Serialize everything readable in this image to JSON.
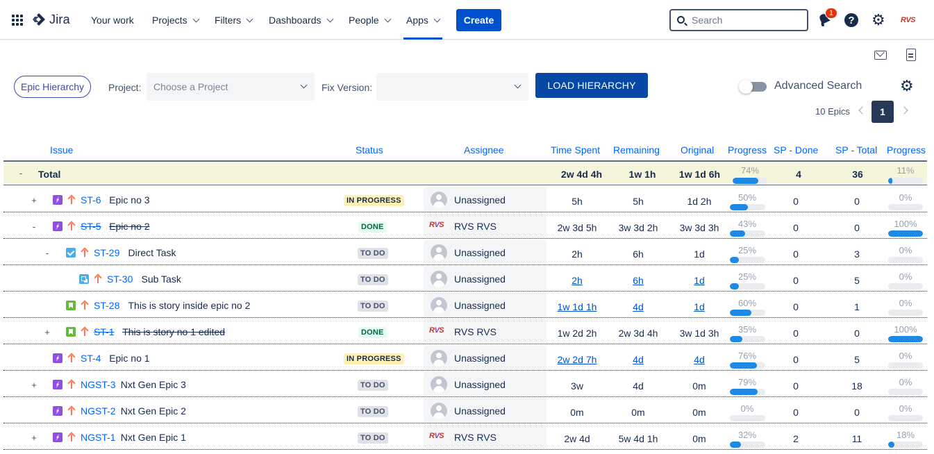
{
  "nav": {
    "product": "Jira",
    "items": [
      "Your work",
      "Projects",
      "Filters",
      "Dashboards",
      "People",
      "Apps"
    ],
    "create_label": "Create",
    "search_placeholder": "Search",
    "notification_count": "1",
    "help_glyph": "?",
    "avatar_text": "RVS",
    "accent": "#0052cc"
  },
  "toolbar": {
    "hierarchy_pill": "Epic Hierarchy",
    "project_label": "Project:",
    "project_placeholder": "Choose a Project",
    "fix_version_label": "Fix Version:",
    "fix_version_value": "",
    "load_button": "LOAD HIERARCHY",
    "advanced_search_label": "Advanced Search",
    "advanced_search_on": false
  },
  "pager": {
    "count_label": "10 Epics",
    "current_page": "1"
  },
  "columns": [
    "Issue",
    "Status",
    "Assignee",
    "Time Spent",
    "Remaining",
    "Original",
    "Progress",
    "SP - Done",
    "SP - Total",
    "Progress"
  ],
  "total": {
    "toggle": "-",
    "label": "Total",
    "time_spent": "2w 4d 4h",
    "remaining": "1w 1h",
    "original": "1w 1d 6h",
    "progress_label": "74%",
    "progress": 0.74,
    "sp_done": "4",
    "sp_total": "36",
    "sp_progress_label": "11%",
    "sp_progress": 0.11
  },
  "rows": [
    {
      "toggle": "+",
      "type": "epic",
      "key": "ST-6",
      "summary": "Epic no 3",
      "done": false,
      "status": "IN PROGRESS",
      "status_kind": "progress",
      "assignee": "Unassigned",
      "assignee_avatar": "default",
      "time_spent": "5h",
      "remaining": "5h",
      "original": "1d 2h",
      "linked": false,
      "progress_label": "50%",
      "progress": 0.5,
      "sp_done": "0",
      "sp_total": "0",
      "sp_progress_label": "0%",
      "sp_progress": 0
    },
    {
      "toggle": "-",
      "type": "epic",
      "key": "ST-5",
      "summary": "Epic no 2",
      "done": true,
      "status": "DONE",
      "status_kind": "done",
      "assignee": "RVS RVS",
      "assignee_avatar": "rvs",
      "time_spent": "2w 3d 5h",
      "remaining": "3w 3d 2h",
      "original": "3w 3d 3h",
      "linked": false,
      "progress_label": "43%",
      "progress": 0.43,
      "sp_done": "0",
      "sp_total": "0",
      "sp_progress_label": "100%",
      "sp_progress": 1.0
    },
    {
      "toggle": "-",
      "type": "task",
      "key": "ST-29",
      "summary": "Direct Task",
      "done": false,
      "status": "TO DO",
      "status_kind": "todo",
      "assignee": "Unassigned",
      "assignee_avatar": "default",
      "time_spent": "2h",
      "remaining": "6h",
      "original": "1d",
      "linked": false,
      "progress_label": "25%",
      "progress": 0.25,
      "sp_done": "0",
      "sp_total": "3",
      "sp_progress_label": "0%",
      "sp_progress": 0
    },
    {
      "toggle": "",
      "type": "subtask",
      "key": "ST-30",
      "summary": "Sub Task",
      "done": false,
      "status": "TO DO",
      "status_kind": "todo",
      "assignee": "Unassigned",
      "assignee_avatar": "default",
      "time_spent": "2h",
      "remaining": "6h",
      "original": "1d",
      "linked": true,
      "progress_label": "25%",
      "progress": 0.25,
      "sp_done": "0",
      "sp_total": "5",
      "sp_progress_label": "0%",
      "sp_progress": 0
    },
    {
      "toggle": "",
      "type": "story",
      "key": "ST-28",
      "summary": "This is story inside epic no 2",
      "done": false,
      "status": "TO DO",
      "status_kind": "todo",
      "assignee": "Unassigned",
      "assignee_avatar": "default",
      "time_spent": "1w 1d 1h",
      "remaining": "4d",
      "original": "1d",
      "linked": true,
      "progress_label": "60%",
      "progress": 0.6,
      "sp_done": "0",
      "sp_total": "1",
      "sp_progress_label": "0%",
      "sp_progress": 0
    },
    {
      "toggle": "+",
      "type": "story",
      "key": "ST-1",
      "summary": "This is story no 1 edited",
      "done": true,
      "status": "DONE",
      "status_kind": "done",
      "assignee": "RVS RVS",
      "assignee_avatar": "rvs",
      "time_spent": "1w 2d 2h",
      "remaining": "2w 3d 4h",
      "original": "3w 1d 3h",
      "linked": false,
      "progress_label": "35%",
      "progress": 0.35,
      "sp_done": "0",
      "sp_total": "0",
      "sp_progress_label": "100%",
      "sp_progress": 1.0
    },
    {
      "toggle": "",
      "type": "epic",
      "key": "ST-4",
      "summary": "Epic no 1",
      "done": false,
      "status": "IN PROGRESS",
      "status_kind": "progress",
      "assignee": "Unassigned",
      "assignee_avatar": "default",
      "time_spent": "2w 2d 7h",
      "remaining": "4d",
      "original": "4d",
      "linked": true,
      "progress_label": "76%",
      "progress": 0.76,
      "sp_done": "0",
      "sp_total": "5",
      "sp_progress_label": "0%",
      "sp_progress": 0
    },
    {
      "toggle": "+",
      "type": "epic",
      "key": "NGST-3",
      "summary": "Nxt Gen Epic 3",
      "done": false,
      "status": "TO DO",
      "status_kind": "todo",
      "assignee": "Unassigned",
      "assignee_avatar": "default",
      "time_spent": "3w",
      "remaining": "4d",
      "original": "0m",
      "linked": false,
      "progress_label": "79%",
      "progress": 0.79,
      "sp_done": "0",
      "sp_total": "18",
      "sp_progress_label": "0%",
      "sp_progress": 0
    },
    {
      "toggle": "",
      "type": "epic",
      "key": "NGST-2",
      "summary": "Nxt Gen Epic 2",
      "done": false,
      "status": "TO DO",
      "status_kind": "todo",
      "assignee": "Unassigned",
      "assignee_avatar": "default",
      "time_spent": "0m",
      "remaining": "0m",
      "original": "0m",
      "linked": false,
      "progress_label": "0%",
      "progress": 0,
      "sp_done": "0",
      "sp_total": "0",
      "sp_progress_label": "0%",
      "sp_progress": 0
    },
    {
      "toggle": "+",
      "type": "epic",
      "key": "NGST-1",
      "summary": "Nxt Gen Epic 1",
      "done": false,
      "status": "TO DO",
      "status_kind": "todo",
      "assignee": "RVS RVS",
      "assignee_avatar": "rvs",
      "time_spent": "2w 4d",
      "remaining": "5w 4d 1h",
      "original": "0m",
      "linked": false,
      "progress_label": "32%",
      "progress": 0.32,
      "sp_done": "2",
      "sp_total": "11",
      "sp_progress_label": "18%",
      "sp_progress": 0.18
    }
  ]
}
